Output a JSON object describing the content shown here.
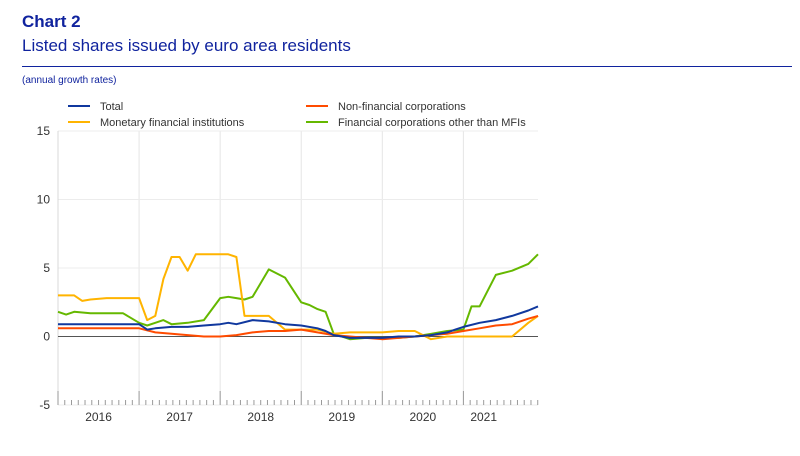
{
  "header": {
    "chart_number": "Chart 2",
    "title": "Listed shares issued by euro area residents",
    "subtitle": "(annual growth rates)"
  },
  "chart_data": {
    "type": "line",
    "title": "Listed shares issued by euro area residents",
    "ylabel": "",
    "xlabel": "",
    "ylim": [
      -5,
      15
    ],
    "yticks": [
      -5,
      0,
      5,
      10,
      15
    ],
    "xlim": [
      2015.5,
      2021.42
    ],
    "year_labels": [
      "2016",
      "2017",
      "2018",
      "2019",
      "2020",
      "2021"
    ],
    "year_label_positions": [
      2016.0,
      2017.0,
      2018.0,
      2019.0,
      2020.0,
      2020.75
    ],
    "legend_position": "top",
    "grid": true,
    "series": [
      {
        "name": "Total",
        "color": "#10389e",
        "x": [
          2015.5,
          2015.7,
          2015.9,
          2016.1,
          2016.3,
          2016.5,
          2016.6,
          2016.7,
          2016.9,
          2017.1,
          2017.3,
          2017.5,
          2017.6,
          2017.7,
          2017.9,
          2018.1,
          2018.3,
          2018.5,
          2018.7,
          2018.8,
          2018.9,
          2019.1,
          2019.3,
          2019.5,
          2019.7,
          2019.9,
          2020.1,
          2020.3,
          2020.4,
          2020.5,
          2020.7,
          2020.9,
          2021.1,
          2021.3,
          2021.42
        ],
        "y": [
          0.9,
          0.9,
          0.9,
          0.9,
          0.9,
          0.9,
          0.5,
          0.6,
          0.7,
          0.7,
          0.8,
          0.9,
          1.0,
          0.9,
          1.2,
          1.1,
          0.9,
          0.8,
          0.6,
          0.4,
          0.1,
          -0.1,
          -0.1,
          -0.1,
          0.0,
          0.0,
          0.1,
          0.3,
          0.5,
          0.7,
          1.0,
          1.2,
          1.5,
          1.9,
          2.2
        ]
      },
      {
        "name": "Non-financial corporations",
        "color": "#ff4b00",
        "x": [
          2015.5,
          2015.7,
          2015.9,
          2016.1,
          2016.3,
          2016.5,
          2016.7,
          2016.9,
          2017.1,
          2017.3,
          2017.5,
          2017.7,
          2017.9,
          2018.1,
          2018.3,
          2018.5,
          2018.7,
          2018.9,
          2019.1,
          2019.3,
          2019.5,
          2019.7,
          2019.9,
          2020.1,
          2020.3,
          2020.5,
          2020.7,
          2020.9,
          2021.1,
          2021.3,
          2021.42
        ],
        "y": [
          0.6,
          0.6,
          0.6,
          0.6,
          0.6,
          0.6,
          0.3,
          0.2,
          0.1,
          0.0,
          0.0,
          0.1,
          0.3,
          0.4,
          0.4,
          0.5,
          0.3,
          0.1,
          0.0,
          -0.1,
          -0.2,
          -0.1,
          0.0,
          0.1,
          0.2,
          0.4,
          0.6,
          0.8,
          0.9,
          1.3,
          1.5
        ]
      },
      {
        "name": "Monetary financial institutions",
        "color": "#ffb400",
        "x": [
          2015.5,
          2015.7,
          2015.8,
          2015.9,
          2016.1,
          2016.3,
          2016.5,
          2016.6,
          2016.7,
          2016.8,
          2016.9,
          2017.0,
          2017.1,
          2017.2,
          2017.3,
          2017.5,
          2017.6,
          2017.7,
          2017.8,
          2017.9,
          2018.1,
          2018.3,
          2018.5,
          2018.7,
          2018.9,
          2019.1,
          2019.3,
          2019.5,
          2019.7,
          2019.9,
          2020.1,
          2020.3,
          2020.5,
          2020.7,
          2020.9,
          2021.1,
          2021.3,
          2021.42
        ],
        "y": [
          3.0,
          3.0,
          2.6,
          2.7,
          2.8,
          2.8,
          2.8,
          1.2,
          1.5,
          4.2,
          5.8,
          5.8,
          4.8,
          6.0,
          6.0,
          6.0,
          6.0,
          5.8,
          1.5,
          1.5,
          1.5,
          0.5,
          0.5,
          0.5,
          0.2,
          0.3,
          0.3,
          0.3,
          0.4,
          0.4,
          -0.2,
          0.0,
          0.0,
          0.0,
          0.0,
          0.0,
          1.0,
          1.5
        ]
      },
      {
        "name": "Financial corporations other than MFIs",
        "color": "#65b800",
        "x": [
          2015.5,
          2015.6,
          2015.7,
          2015.9,
          2016.1,
          2016.3,
          2016.5,
          2016.6,
          2016.7,
          2016.8,
          2016.9,
          2017.1,
          2017.3,
          2017.5,
          2017.6,
          2017.7,
          2017.8,
          2017.9,
          2018.1,
          2018.3,
          2018.5,
          2018.6,
          2018.7,
          2018.8,
          2018.9,
          2019.1,
          2019.3,
          2019.5,
          2019.7,
          2019.9,
          2020.1,
          2020.3,
          2020.5,
          2020.6,
          2020.7,
          2020.9,
          2021.1,
          2021.3,
          2021.42
        ],
        "y": [
          1.8,
          1.6,
          1.8,
          1.7,
          1.7,
          1.7,
          1.0,
          0.8,
          1.0,
          1.2,
          0.9,
          1.0,
          1.2,
          2.8,
          2.9,
          2.8,
          2.7,
          2.9,
          4.9,
          4.3,
          2.5,
          2.3,
          2.0,
          1.8,
          0.2,
          -0.2,
          -0.1,
          -0.1,
          -0.1,
          0.0,
          0.2,
          0.4,
          0.5,
          2.2,
          2.2,
          4.5,
          4.8,
          5.3,
          6.0
        ]
      }
    ]
  }
}
